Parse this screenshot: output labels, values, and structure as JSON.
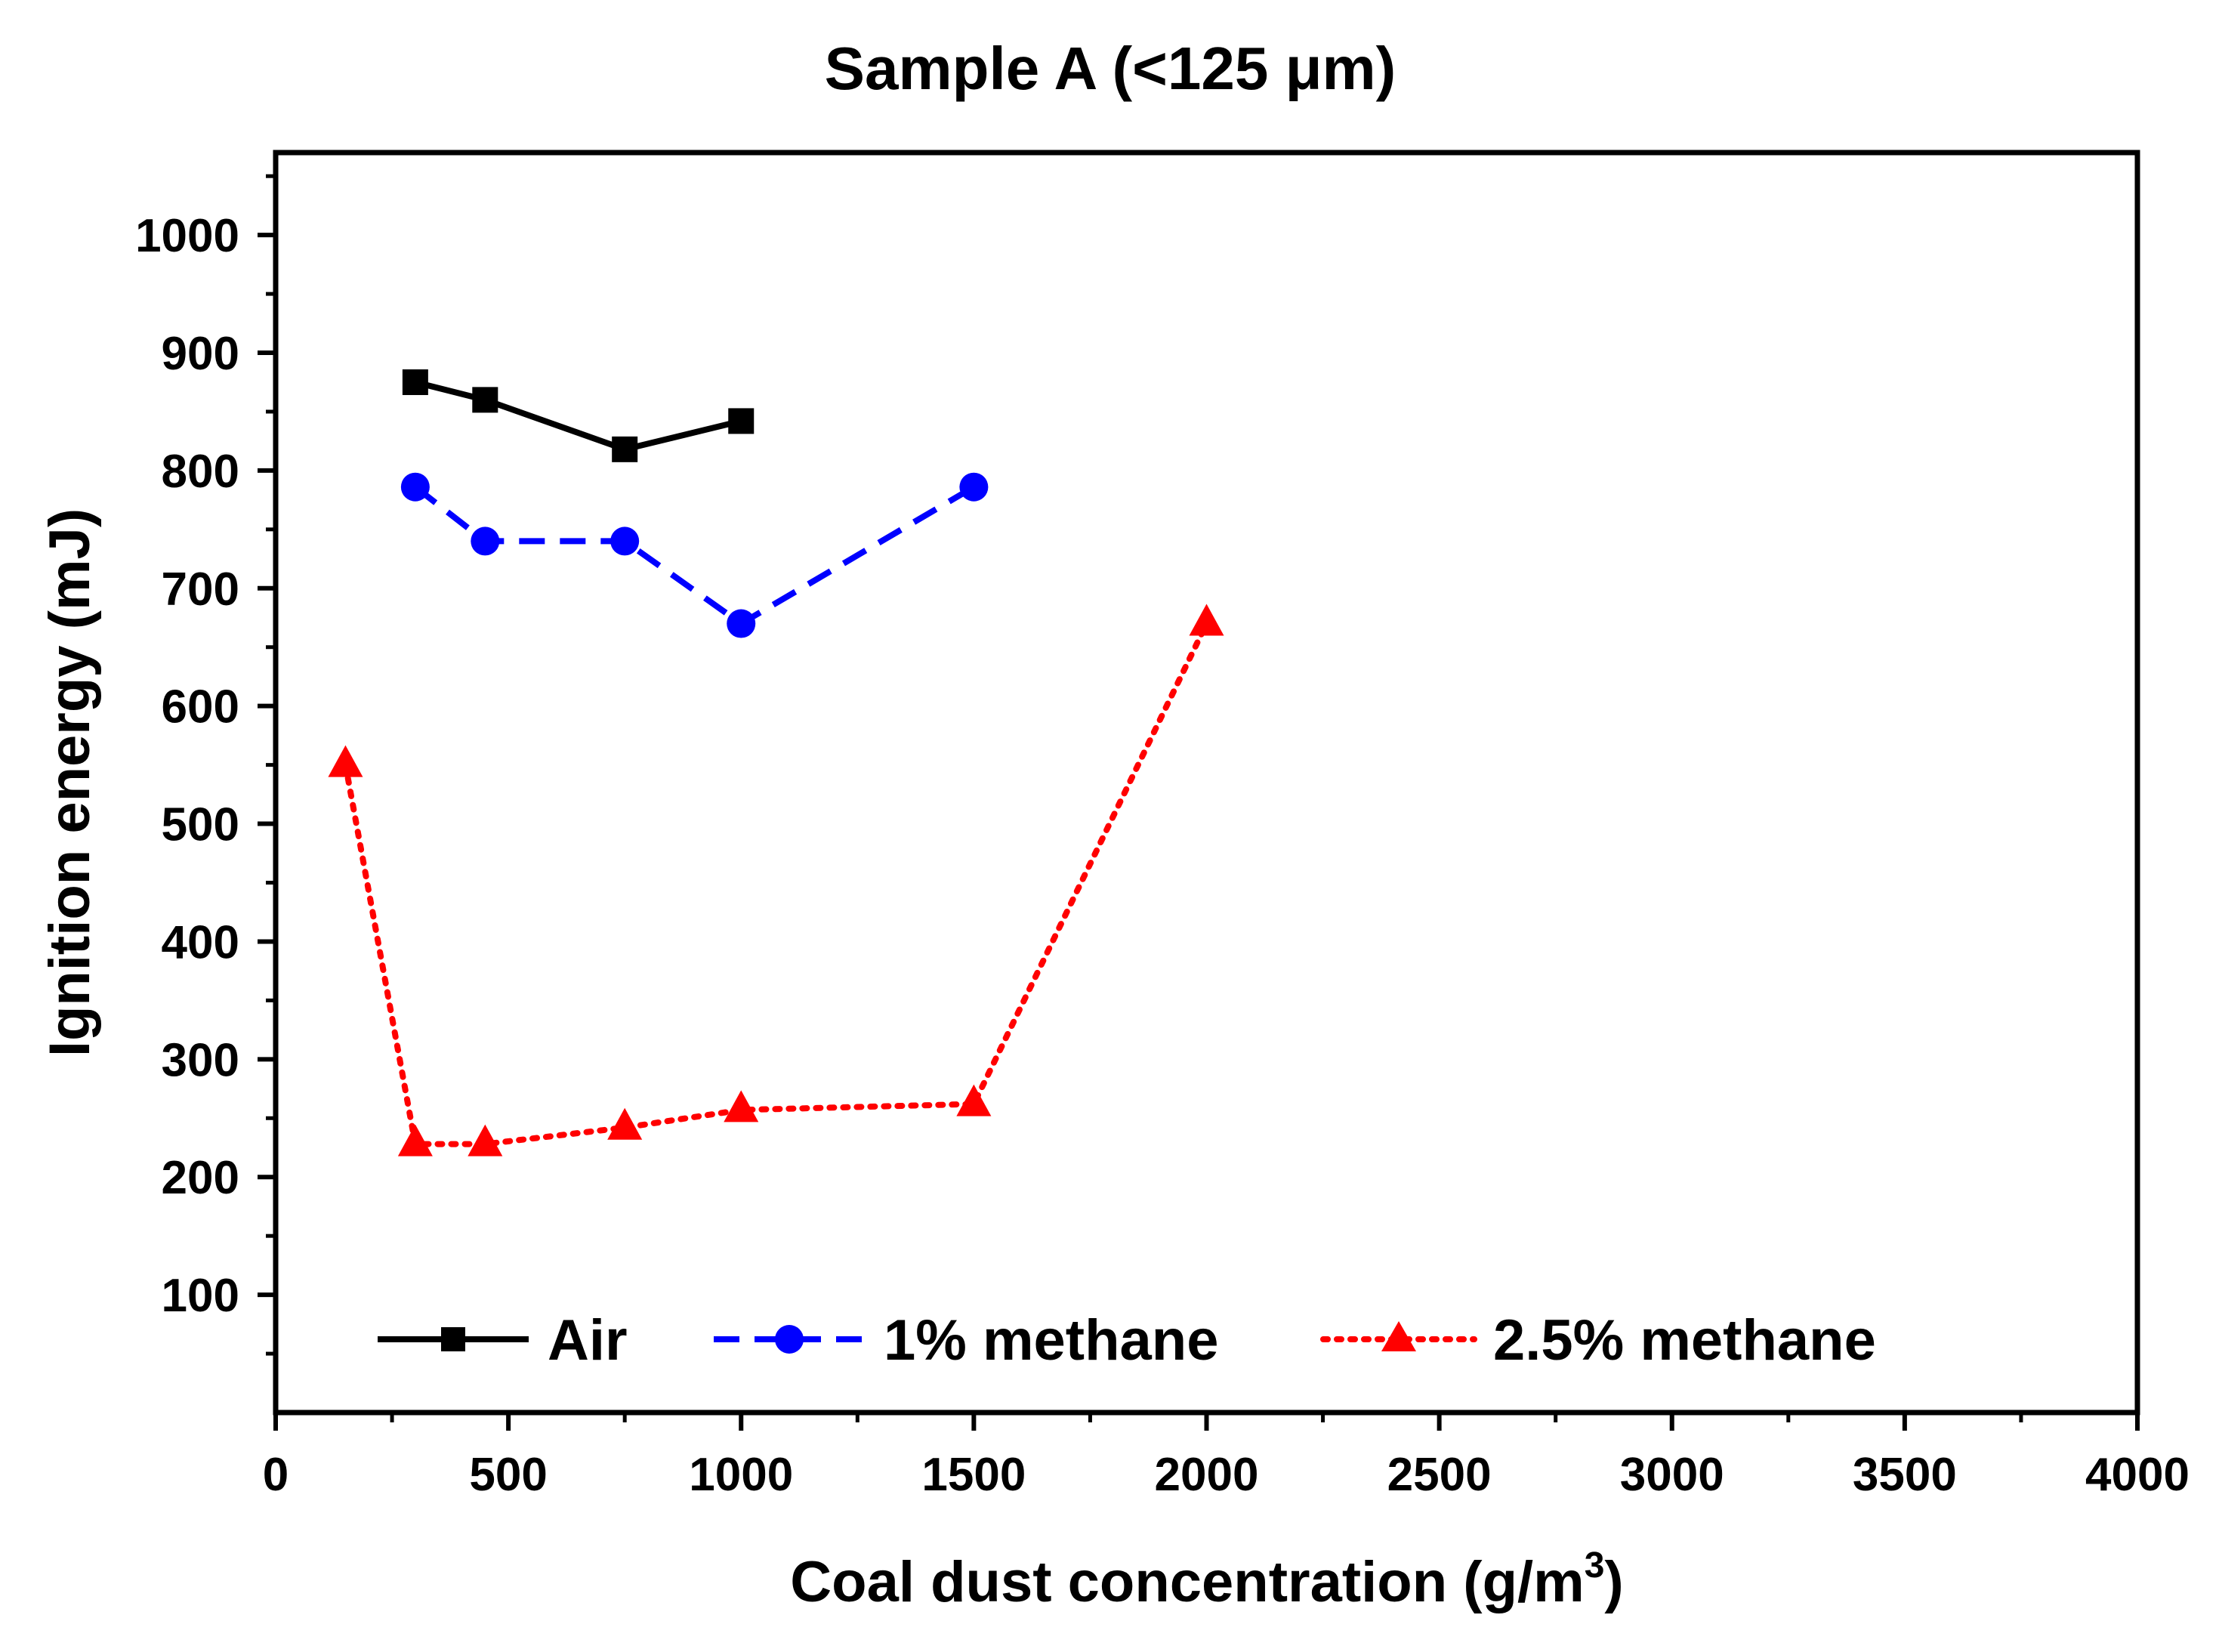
{
  "chart_data": {
    "type": "line",
    "title": "Sample A (<125 μm)",
    "xlabel": "Coal dust concentration (g/m3)",
    "xlabel_main": "Coal dust concentration (g/m",
    "xlabel_sup": "3",
    "xlabel_close": ")",
    "ylabel": "Ignition energy (mJ)",
    "xlim": [
      0,
      4000
    ],
    "ylim": [
      0,
      1070
    ],
    "xticks": [
      "0",
      "500",
      "1000",
      "1500",
      "2000",
      "2500",
      "3000",
      "3500",
      "4000"
    ],
    "yticks": [
      "100",
      "200",
      "300",
      "400",
      "500",
      "600",
      "700",
      "800",
      "900",
      "1000"
    ],
    "grid": false,
    "legend_position": "bottom",
    "series": [
      {
        "name": "Air",
        "marker": "square",
        "line_style": "solid",
        "color": "#000000",
        "x": [
          300,
          450,
          750,
          1000
        ],
        "y": [
          875,
          860,
          818,
          842
        ]
      },
      {
        "name": "1% methane",
        "marker": "circle",
        "line_style": "dashed",
        "color": "#0000ff",
        "x": [
          300,
          450,
          750,
          1000,
          1500
        ],
        "y": [
          786,
          740,
          740,
          670,
          786
        ]
      },
      {
        "name": "2.5% methane",
        "marker": "triangle",
        "line_style": "dotted",
        "color": "#ff0000",
        "x": [
          150,
          300,
          450,
          750,
          1000,
          1500,
          2000
        ],
        "y": [
          550,
          228,
          228,
          242,
          257,
          262,
          670
        ]
      }
    ]
  }
}
